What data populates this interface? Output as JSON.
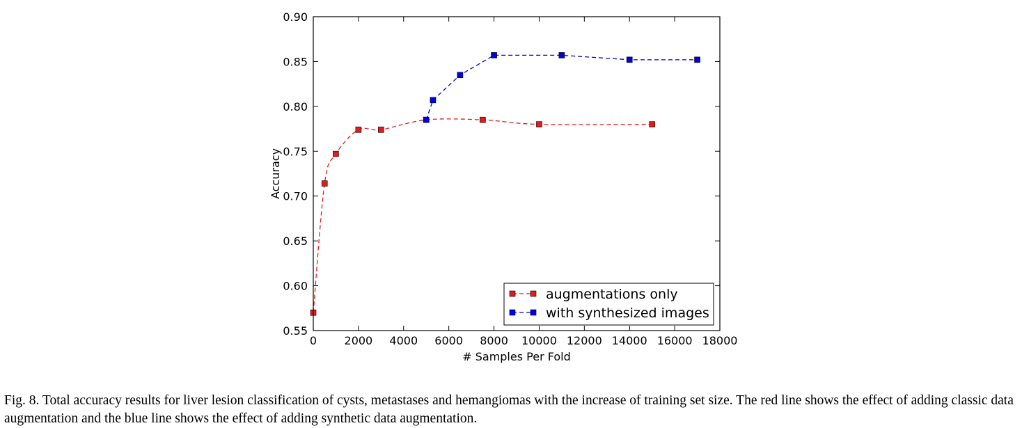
{
  "chart_data": {
    "type": "line",
    "xlabel": "# Samples Per Fold",
    "ylabel": "Accuracy",
    "xlim": [
      0,
      18000
    ],
    "ylim": [
      0.55,
      0.9
    ],
    "xticks": [
      0,
      2000,
      4000,
      6000,
      8000,
      10000,
      12000,
      14000,
      16000,
      18000
    ],
    "yticks": [
      0.55,
      0.6,
      0.65,
      0.7,
      0.75,
      0.8,
      0.85,
      0.9
    ],
    "ytick_labels": [
      "0.55",
      "0.60",
      "0.65",
      "0.70",
      "0.75",
      "0.80",
      "0.85",
      "0.90"
    ],
    "grid": false,
    "legend_position": "bottom-right",
    "series": [
      {
        "name": "augmentations only",
        "color": "#e41a1c",
        "marker": "square",
        "linestyle": "dashed",
        "smooth": true,
        "x": [
          0,
          500,
          1000,
          2000,
          3000,
          5000,
          7500,
          10000,
          15000
        ],
        "y": [
          0.57,
          0.714,
          0.747,
          0.774,
          0.774,
          0.785,
          0.785,
          0.78,
          0.78
        ]
      },
      {
        "name": "with synthesized images",
        "color": "#0000e6",
        "marker": "square",
        "linestyle": "dashed",
        "smooth": false,
        "x": [
          5000,
          5300,
          6500,
          8000,
          11000,
          14000,
          17000
        ],
        "y": [
          0.785,
          0.807,
          0.835,
          0.857,
          0.857,
          0.852,
          0.852
        ]
      }
    ]
  },
  "caption": "Fig. 8.  Total accuracy results for liver lesion classification of cysts, metastases and hemangiomas with the increase of training set size. The red line shows the effect of adding classic data augmentation and the blue line shows the effect of adding synthetic data augmentation."
}
